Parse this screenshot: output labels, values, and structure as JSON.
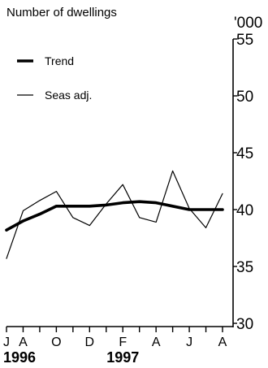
{
  "chart_data": {
    "type": "line",
    "ylabel": "Number of dwellings",
    "yunit": "'000",
    "ylim": [
      30,
      55
    ],
    "yticks": [
      30,
      35,
      40,
      45,
      50,
      55
    ],
    "x": [
      "1996-07",
      "1996-08",
      "1996-09",
      "1996-10",
      "1996-11",
      "1996-12",
      "1997-01",
      "1997-02",
      "1997-03",
      "1997-04",
      "1997-05",
      "1997-06",
      "1997-07",
      "1997-08"
    ],
    "xticks": [
      {
        "x": "1996-07",
        "label": "J"
      },
      {
        "x": "1996-08",
        "label": "A"
      },
      {
        "x": "1996-10",
        "label": "O"
      },
      {
        "x": "1996-12",
        "label": "D"
      },
      {
        "x": "1997-02",
        "label": "F"
      },
      {
        "x": "1997-04",
        "label": "A"
      },
      {
        "x": "1997-06",
        "label": "J"
      },
      {
        "x": "1997-08",
        "label": "A"
      }
    ],
    "years": [
      {
        "x": "1996-07",
        "label": "1996"
      },
      {
        "x": "1997-02",
        "label": "1997"
      }
    ],
    "series": [
      {
        "name": "Trend",
        "style": "thick",
        "values": [
          38.2,
          39.0,
          39.6,
          40.3,
          40.3,
          40.3,
          40.4,
          40.6,
          40.7,
          40.6,
          40.3,
          40.0,
          40.0,
          40.0
        ]
      },
      {
        "name": "Seas adj.",
        "style": "thin",
        "values": [
          35.7,
          39.9,
          40.8,
          41.6,
          39.3,
          38.6,
          40.5,
          42.2,
          39.3,
          38.9,
          43.4,
          40.1,
          38.4,
          41.4
        ]
      }
    ],
    "legend": "top-left",
    "grid": false
  }
}
